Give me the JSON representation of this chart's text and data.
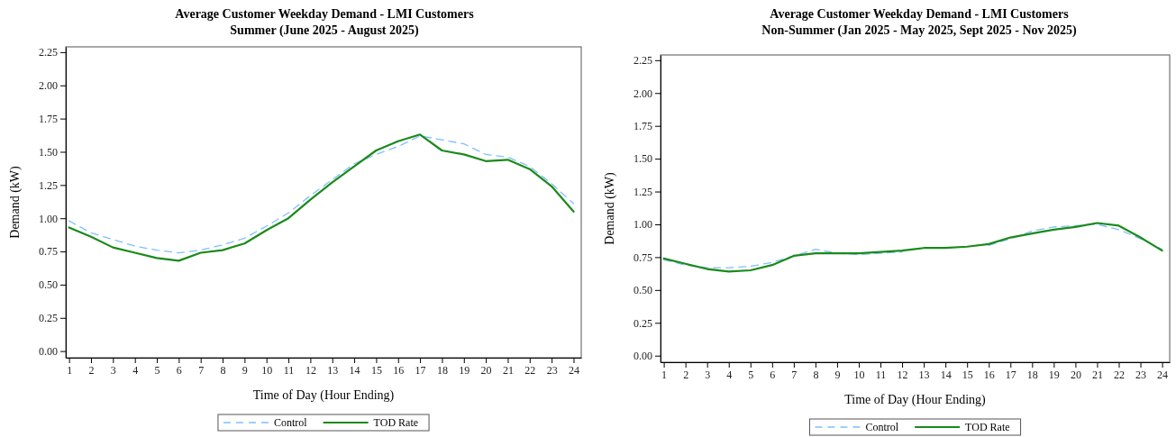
{
  "chart_data": [
    {
      "type": "line",
      "title": "Average Customer Weekday Demand - LMI Customers",
      "subtitle": "Summer (June 2025 - August 2025)",
      "xlabel": "Time of Day (Hour Ending)",
      "ylabel": "Demand (kW)",
      "x": [
        1,
        2,
        3,
        4,
        5,
        6,
        7,
        8,
        9,
        10,
        11,
        12,
        13,
        14,
        15,
        16,
        17,
        18,
        19,
        20,
        21,
        22,
        23,
        24
      ],
      "series": [
        {
          "name": "Control",
          "color": "#7fbfff",
          "line_style": "dashed",
          "values": [
            0.98,
            0.89,
            0.84,
            0.79,
            0.76,
            0.74,
            0.76,
            0.8,
            0.85,
            0.94,
            1.04,
            1.17,
            1.29,
            1.41,
            1.48,
            1.54,
            1.62,
            1.59,
            1.56,
            1.48,
            1.46,
            1.39,
            1.26,
            1.11
          ]
        },
        {
          "name": "TOD Rate",
          "color": "#1a8a1a",
          "line_style": "solid",
          "values": [
            0.93,
            0.86,
            0.78,
            0.74,
            0.7,
            0.68,
            0.74,
            0.76,
            0.81,
            0.91,
            1.0,
            1.14,
            1.27,
            1.39,
            1.51,
            1.58,
            1.63,
            1.51,
            1.48,
            1.43,
            1.44,
            1.37,
            1.24,
            1.05
          ]
        }
      ],
      "xlim": [
        0.85,
        24.35
      ],
      "xticks": [
        1,
        2,
        3,
        4,
        5,
        6,
        7,
        8,
        9,
        10,
        11,
        12,
        13,
        14,
        15,
        16,
        17,
        18,
        19,
        20,
        21,
        22,
        23,
        24
      ],
      "ylim": [
        -0.05,
        2.29
      ],
      "yticks": [
        {
          "value": 0,
          "label": "0.00"
        },
        {
          "value": 0.25,
          "label": "0.25"
        },
        {
          "value": 0.5,
          "label": "0.50"
        },
        {
          "value": 0.75,
          "label": "0.75"
        },
        {
          "value": 1,
          "label": "1.00"
        },
        {
          "value": 1.25,
          "label": "1.25"
        },
        {
          "value": 1.5,
          "label": "1.50"
        },
        {
          "value": 1.75,
          "label": "1.75"
        },
        {
          "value": 2,
          "label": "2.00"
        },
        {
          "value": 2.25,
          "label": "2.25"
        }
      ],
      "grid": false,
      "legend": "bottom",
      "marker": "none"
    },
    {
      "type": "line",
      "title": "Average Customer Weekday Demand - LMI Customers",
      "subtitle": "Non-Summer (Jan 2025 - May 2025, Sept 2025 - Nov 2025)",
      "xlabel": "Time of Day (Hour Ending)",
      "ylabel": "Demand (kW)",
      "x": [
        1,
        2,
        3,
        4,
        5,
        6,
        7,
        8,
        9,
        10,
        11,
        12,
        13,
        14,
        15,
        16,
        17,
        18,
        19,
        20,
        21,
        22,
        23,
        24
      ],
      "series": [
        {
          "name": "Control",
          "color": "#7fbfff",
          "line_style": "dashed",
          "values": [
            0.73,
            0.69,
            0.67,
            0.67,
            0.68,
            0.71,
            0.76,
            0.81,
            0.78,
            0.77,
            0.78,
            0.79,
            null,
            null,
            null,
            0.84,
            0.89,
            0.95,
            0.98,
            0.99,
            1.0,
            0.96,
            0.89,
            0.81
          ]
        },
        {
          "name": "TOD Rate",
          "color": "#1a8a1a",
          "line_style": "solid",
          "values": [
            0.74,
            0.7,
            0.66,
            0.64,
            0.65,
            0.69,
            0.76,
            0.78,
            0.78,
            0.78,
            0.79,
            0.8,
            0.82,
            0.82,
            0.83,
            0.85,
            0.9,
            0.93,
            0.96,
            0.98,
            1.01,
            0.99,
            0.9,
            0.8
          ]
        }
      ],
      "xlim": [
        0.85,
        24.35
      ],
      "xticks": [
        1,
        2,
        3,
        4,
        5,
        6,
        7,
        8,
        9,
        10,
        11,
        12,
        13,
        14,
        15,
        16,
        17,
        18,
        19,
        20,
        21,
        22,
        23,
        24
      ],
      "ylim": [
        -0.05,
        2.29
      ],
      "yticks": [
        {
          "value": 0,
          "label": "0.00"
        },
        {
          "value": 0.25,
          "label": "0.25"
        },
        {
          "value": 0.5,
          "label": "0.50"
        },
        {
          "value": 0.75,
          "label": "0.75"
        },
        {
          "value": 1,
          "label": "1.00"
        },
        {
          "value": 1.25,
          "label": "1.25"
        },
        {
          "value": 1.5,
          "label": "1.50"
        },
        {
          "value": 1.75,
          "label": "1.75"
        },
        {
          "value": 2,
          "label": "2.00"
        },
        {
          "value": 2.25,
          "label": "2.25"
        }
      ],
      "grid": false,
      "legend": "bottom",
      "marker": "none"
    }
  ]
}
